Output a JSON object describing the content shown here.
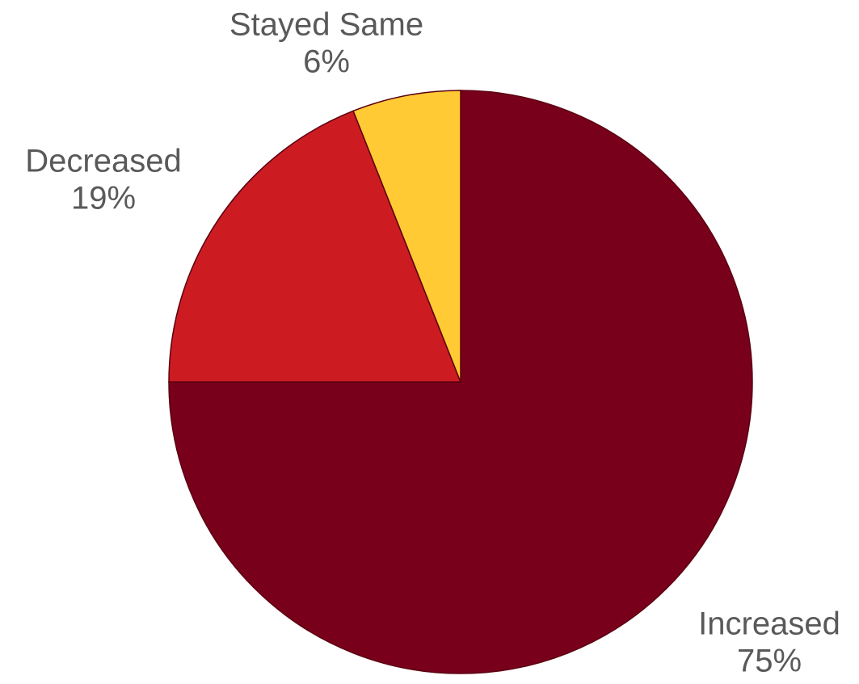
{
  "chart_data": {
    "type": "pie",
    "title": "",
    "slices": [
      {
        "label": "Increased",
        "value": 75,
        "display": "75%",
        "color": "#79001B"
      },
      {
        "label": "Decreased",
        "value": 19,
        "display": "19%",
        "color": "#CC1C22"
      },
      {
        "label": "Stayed Same",
        "value": 6,
        "display": "6%",
        "color": "#FFCA33"
      }
    ],
    "start_angle": "12 o'clock",
    "direction": "clockwise",
    "legend": "none"
  }
}
